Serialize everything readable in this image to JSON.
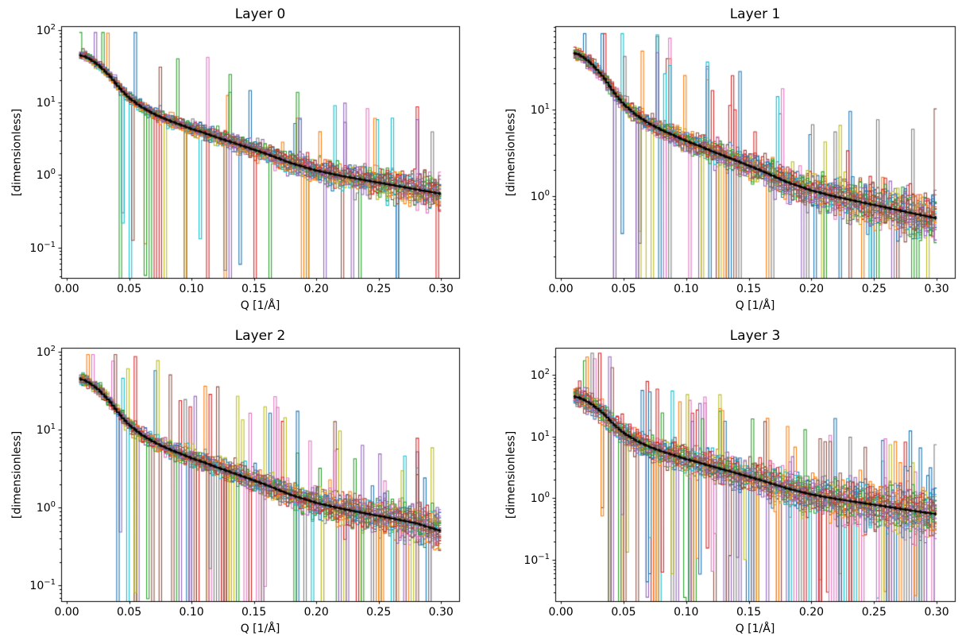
{
  "figure_background": "#ffffff",
  "palette": [
    "#1f77b4",
    "#ff7f0e",
    "#2ca02c",
    "#d62728",
    "#9467bd",
    "#8c564b",
    "#e377c2",
    "#7f7f7f",
    "#bcbd22",
    "#17becf"
  ],
  "mean_color": "#000000",
  "chart_data": [
    {
      "type": "line",
      "title": "Layer 0",
      "xlabel": "Q [1/Å]",
      "ylabel": "[dimensionless]",
      "x_tick_labels": [
        "0.00",
        "0.05",
        "0.10",
        "0.15",
        "0.20",
        "0.25",
        "0.30"
      ],
      "x_tick_values": [
        0.0,
        0.05,
        0.1,
        0.15,
        0.2,
        0.25,
        0.3
      ],
      "y_tick_exponents": [
        2,
        1,
        0,
        -1
      ],
      "xlim": [
        -0.0045,
        0.3145
      ],
      "ylog_lim": [
        -1.42,
        2.05
      ],
      "y_scale": "log",
      "q_range": [
        0.01,
        0.3
      ],
      "n_series": 36,
      "n_bins": 145,
      "mean_x": [
        0.01,
        0.015,
        0.02,
        0.025,
        0.03,
        0.035,
        0.04,
        0.045,
        0.05,
        0.06,
        0.07,
        0.08,
        0.09,
        0.1,
        0.11,
        0.12,
        0.14,
        0.16,
        0.18,
        0.2,
        0.22,
        0.24,
        0.26,
        0.28,
        0.3
      ],
      "mean_y": [
        45,
        42.5,
        38,
        33,
        27.5,
        22.5,
        17.5,
        14,
        11.5,
        8.6,
        6.9,
        5.8,
        5.0,
        4.3,
        3.8,
        3.3,
        2.55,
        1.95,
        1.45,
        1.15,
        0.97,
        0.84,
        0.73,
        0.63,
        0.55
      ],
      "noise": {
        "sigma_low": 0.05,
        "sigma_high": 0.24,
        "series_spread": 0.04,
        "dropout_prob": 0.01,
        "dropout_start_q": 0.042,
        "dropout_tail_weight": 0.55,
        "spike_prob": 0.006,
        "seed": 11
      }
    },
    {
      "type": "line",
      "title": "Layer 1",
      "xlabel": "Q [1/Å]",
      "ylabel": "[dimensionless]",
      "x_tick_labels": [
        "0.00",
        "0.05",
        "0.10",
        "0.15",
        "0.20",
        "0.25",
        "0.30"
      ],
      "x_tick_values": [
        0.0,
        0.05,
        0.1,
        0.15,
        0.2,
        0.25,
        0.3
      ],
      "y_tick_exponents": [
        1,
        0
      ],
      "xlim": [
        -0.0045,
        0.3145
      ],
      "ylog_lim": [
        -0.95,
        1.96
      ],
      "y_scale": "log",
      "q_range": [
        0.01,
        0.3
      ],
      "n_series": 36,
      "n_bins": 145,
      "mean_x": [
        0.01,
        0.015,
        0.02,
        0.025,
        0.03,
        0.035,
        0.04,
        0.045,
        0.05,
        0.06,
        0.07,
        0.08,
        0.09,
        0.1,
        0.11,
        0.12,
        0.14,
        0.16,
        0.18,
        0.2,
        0.22,
        0.24,
        0.26,
        0.28,
        0.3
      ],
      "mean_y": [
        45,
        42.5,
        38,
        33,
        27.5,
        22.5,
        17.5,
        14,
        11.5,
        8.6,
        6.9,
        5.8,
        5.0,
        4.3,
        3.8,
        3.3,
        2.55,
        1.95,
        1.45,
        1.15,
        0.97,
        0.84,
        0.73,
        0.63,
        0.55
      ],
      "noise": {
        "sigma_low": 0.06,
        "sigma_high": 0.3,
        "series_spread": 0.05,
        "dropout_prob": 0.013,
        "dropout_start_q": 0.042,
        "dropout_tail_weight": 0.65,
        "spike_prob": 0.007,
        "seed": 22
      }
    },
    {
      "type": "line",
      "title": "Layer 2",
      "xlabel": "Q [1/Å]",
      "ylabel": "[dimensionless]",
      "x_tick_labels": [
        "0.00",
        "0.05",
        "0.10",
        "0.15",
        "0.20",
        "0.25",
        "0.30"
      ],
      "x_tick_values": [
        0.0,
        0.05,
        0.1,
        0.15,
        0.2,
        0.25,
        0.3
      ],
      "y_tick_exponents": [
        2,
        1,
        0,
        -1
      ],
      "xlim": [
        -0.0045,
        0.3145
      ],
      "ylog_lim": [
        -1.2,
        2.05
      ],
      "y_scale": "log",
      "q_range": [
        0.01,
        0.3
      ],
      "n_series": 36,
      "n_bins": 145,
      "mean_x": [
        0.01,
        0.015,
        0.02,
        0.025,
        0.03,
        0.035,
        0.04,
        0.045,
        0.05,
        0.06,
        0.07,
        0.08,
        0.09,
        0.1,
        0.11,
        0.12,
        0.14,
        0.16,
        0.18,
        0.2,
        0.22,
        0.24,
        0.26,
        0.28,
        0.3
      ],
      "mean_y": [
        45,
        42.5,
        38,
        33,
        27.5,
        22.5,
        17.5,
        14,
        11.5,
        8.6,
        6.9,
        5.8,
        5.0,
        4.3,
        3.8,
        3.3,
        2.55,
        1.95,
        1.45,
        1.15,
        0.97,
        0.84,
        0.73,
        0.63,
        0.5
      ],
      "noise": {
        "sigma_low": 0.06,
        "sigma_high": 0.28,
        "series_spread": 0.05,
        "dropout_prob": 0.016,
        "dropout_start_q": 0.04,
        "dropout_tail_weight": 0.75,
        "spike_prob": 0.007,
        "seed": 33
      }
    },
    {
      "type": "line",
      "title": "Layer 3",
      "xlabel": "Q [1/Å]",
      "ylabel": "[dimensionless]",
      "x_tick_labels": [
        "0.00",
        "0.05",
        "0.10",
        "0.15",
        "0.20",
        "0.25",
        "0.30"
      ],
      "x_tick_values": [
        0.0,
        0.05,
        0.1,
        0.15,
        0.2,
        0.25,
        0.3
      ],
      "y_tick_exponents": [
        2,
        1,
        0,
        -1
      ],
      "xlim": [
        -0.0045,
        0.3145
      ],
      "ylog_lim": [
        -1.67,
        2.44
      ],
      "y_scale": "log",
      "q_range": [
        0.01,
        0.3
      ],
      "n_series": 36,
      "n_bins": 145,
      "mean_x": [
        0.01,
        0.015,
        0.02,
        0.025,
        0.03,
        0.035,
        0.04,
        0.045,
        0.05,
        0.06,
        0.07,
        0.08,
        0.09,
        0.1,
        0.11,
        0.12,
        0.14,
        0.16,
        0.18,
        0.2,
        0.22,
        0.24,
        0.26,
        0.28,
        0.3
      ],
      "mean_y": [
        45,
        42.5,
        38,
        33,
        27.5,
        22.5,
        17.5,
        14,
        11.5,
        8.6,
        6.9,
        5.8,
        5.0,
        4.3,
        3.8,
        3.3,
        2.55,
        1.95,
        1.45,
        1.15,
        0.97,
        0.84,
        0.73,
        0.63,
        0.55
      ],
      "noise": {
        "sigma_low": 0.16,
        "sigma_high": 0.42,
        "series_spread": 0.09,
        "dropout_prob": 0.022,
        "dropout_start_q": 0.032,
        "dropout_tail_weight": 1.0,
        "spike_prob": 0.01,
        "seed": 44
      }
    }
  ]
}
